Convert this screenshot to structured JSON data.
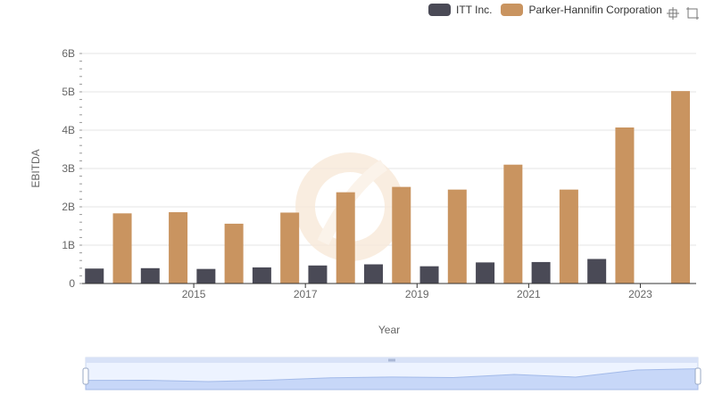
{
  "legend": {
    "items": [
      {
        "label": "ITT Inc.",
        "color": "#4a4a56"
      },
      {
        "label": "Parker-Hannifin Corporation",
        "color": "#c99460"
      }
    ]
  },
  "toolbox": {
    "zoom_icon": "zoom-icon",
    "reset_icon": "restore-icon"
  },
  "chart_data": {
    "type": "bar",
    "xlabel": "Year",
    "ylabel": "EBITDA",
    "categories": [
      "2014",
      "2015",
      "2016",
      "2017",
      "2018",
      "2019",
      "2020",
      "2021",
      "2022",
      "2023",
      "2024"
    ],
    "x_tick_labels": [
      "2015",
      "2017",
      "2019",
      "2021",
      "2023"
    ],
    "y_tick_labels": [
      "0",
      "1B",
      "2B",
      "3B",
      "4B",
      "5B",
      "6B"
    ],
    "ylim": [
      0,
      6000000000
    ],
    "grid": true,
    "legend_position": "top-right",
    "series": [
      {
        "name": "ITT Inc.",
        "color": "#4a4a56",
        "values": [
          390000000,
          400000000,
          380000000,
          420000000,
          470000000,
          500000000,
          450000000,
          550000000,
          560000000,
          640000000,
          null
        ]
      },
      {
        "name": "Parker-Hannifin Corporation",
        "color": "#c99460",
        "values": [
          1830000000,
          1860000000,
          1560000000,
          1850000000,
          2380000000,
          2520000000,
          2450000000,
          3100000000,
          2450000000,
          4070000000,
          5020000000
        ]
      }
    ]
  },
  "data_zoom": {
    "start_percent": 0,
    "end_percent": 100
  }
}
